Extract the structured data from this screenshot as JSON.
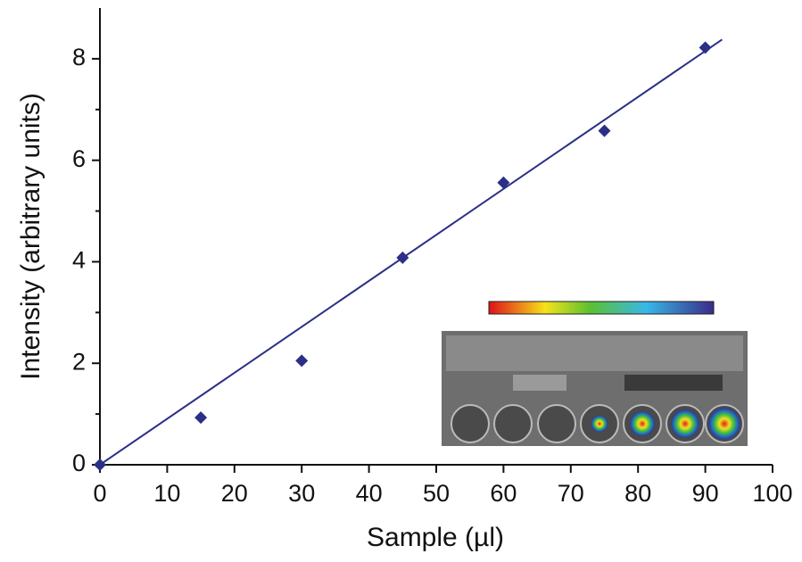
{
  "chart_data": {
    "type": "scatter",
    "x_label": "Sample (µl)",
    "y_label": "Intensity (arbitrary units)",
    "x": [
      0,
      15,
      30,
      45,
      60,
      75,
      90
    ],
    "values": [
      0,
      0.93,
      2.05,
      4.08,
      5.56,
      6.58,
      8.22
    ],
    "color": "#2b2f86",
    "fit_line": {
      "x": [
        0,
        92.5
      ],
      "values": [
        0,
        8.38
      ]
    },
    "xlim": [
      0,
      100
    ],
    "xticks": [
      0,
      10,
      20,
      30,
      40,
      50,
      60,
      70,
      80,
      90,
      100
    ],
    "ylim": [
      0,
      9
    ],
    "yticks": [
      0,
      2,
      4,
      6,
      8
    ],
    "minor_yticks": [
      1,
      3,
      5,
      7
    ]
  }
}
